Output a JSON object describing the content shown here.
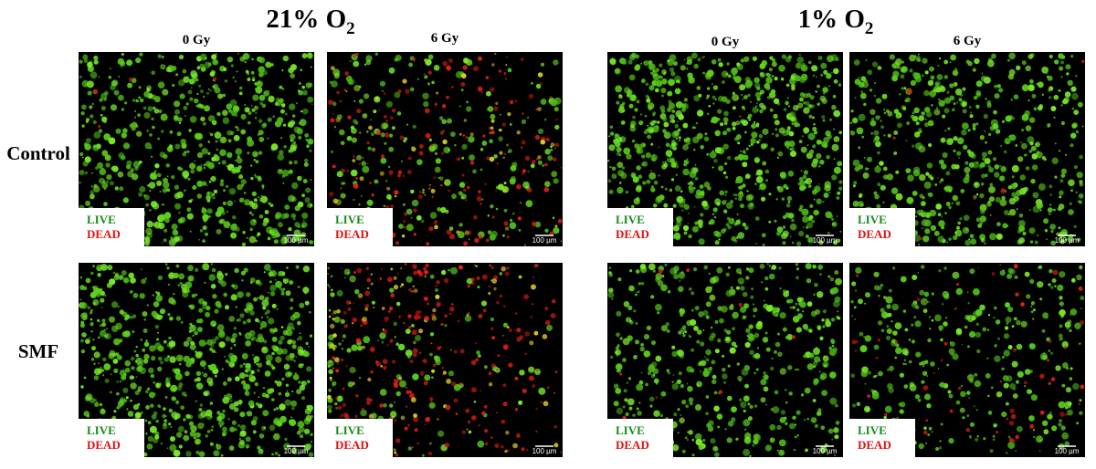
{
  "groups": [
    {
      "title": {
        "main": "21% O",
        "sub": "2"
      },
      "columns": [
        "0 Gy",
        "6 Gy"
      ]
    },
    {
      "title": {
        "main": "1% O",
        "sub": "2"
      },
      "columns": [
        "0 Gy",
        "6 Gy"
      ]
    }
  ],
  "rows": [
    "Control",
    "SMF"
  ],
  "legend": {
    "live": "LIVE",
    "dead": "DEAD"
  },
  "scale_bar": "100 µm"
}
